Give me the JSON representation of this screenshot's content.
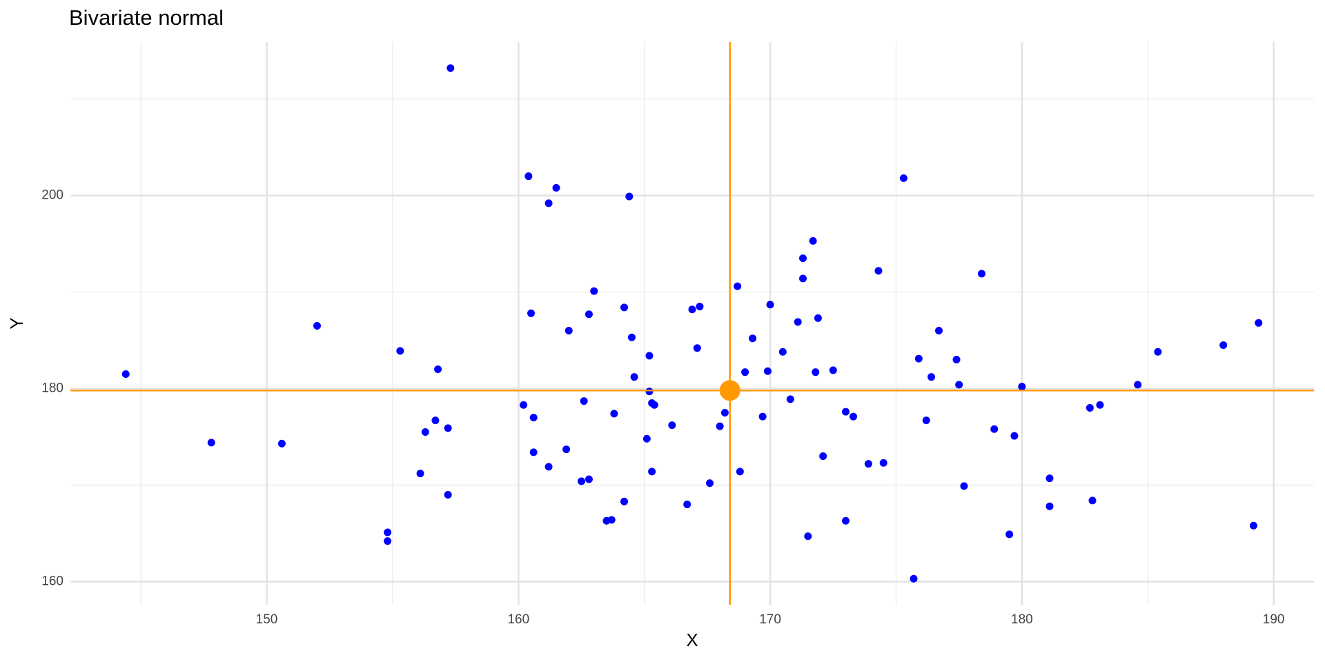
{
  "chart_data": {
    "type": "scatter",
    "title": "Bivariate normal",
    "xlabel": "X",
    "ylabel": "Y",
    "x": [
      144.4,
      147.8,
      150.6,
      152.0,
      154.8,
      154.8,
      155.3,
      156.1,
      156.3,
      156.7,
      156.8,
      157.2,
      157.2,
      157.3,
      160.2,
      160.4,
      160.5,
      160.6,
      160.6,
      161.2,
      161.2,
      161.5,
      161.9,
      162.0,
      162.5,
      162.6,
      162.8,
      162.8,
      163.0,
      163.5,
      163.7,
      163.8,
      164.2,
      164.2,
      164.4,
      164.5,
      164.6,
      165.1,
      165.2,
      165.2,
      165.3,
      165.4,
      165.3,
      166.1,
      166.7,
      166.9,
      167.1,
      167.2,
      167.6,
      168.0,
      168.2,
      168.7,
      168.8,
      169.0,
      169.3,
      169.7,
      169.9,
      170.0,
      170.5,
      170.8,
      171.1,
      171.3,
      171.3,
      171.5,
      171.7,
      171.8,
      171.9,
      172.1,
      172.5,
      173.0,
      173.0,
      173.3,
      173.9,
      174.3,
      174.5,
      175.3,
      175.7,
      175.9,
      176.2,
      176.4,
      176.7,
      177.4,
      177.5,
      177.7,
      178.4,
      178.9,
      179.5,
      179.7,
      180.0,
      181.1,
      181.1,
      182.7,
      182.8,
      183.1,
      184.6,
      185.4,
      188.0,
      189.2,
      189.4
    ],
    "y": [
      181.5,
      174.4,
      174.3,
      186.5,
      165.1,
      164.2,
      183.9,
      171.2,
      175.5,
      176.7,
      182.0,
      175.9,
      169.0,
      213.2,
      178.3,
      202.0,
      187.8,
      177.0,
      173.4,
      171.9,
      199.2,
      200.8,
      173.7,
      186.0,
      170.4,
      178.7,
      170.6,
      187.7,
      190.1,
      166.3,
      166.4,
      177.4,
      168.3,
      188.4,
      199.9,
      185.3,
      181.2,
      174.8,
      183.4,
      179.7,
      178.5,
      178.3,
      171.4,
      176.2,
      168.0,
      188.2,
      184.2,
      188.5,
      170.2,
      176.1,
      177.5,
      190.6,
      171.4,
      181.7,
      185.2,
      177.1,
      181.8,
      188.7,
      183.8,
      178.9,
      186.9,
      191.4,
      193.5,
      164.7,
      195.3,
      181.7,
      187.3,
      173.0,
      181.9,
      177.6,
      166.3,
      177.1,
      172.2,
      192.2,
      172.3,
      201.8,
      160.3,
      183.1,
      176.7,
      181.2,
      186.0,
      183.0,
      180.4,
      169.9,
      191.9,
      175.8,
      164.9,
      175.1,
      180.2,
      170.7,
      167.8,
      178.0,
      168.4,
      178.3,
      180.4,
      183.8,
      184.5,
      165.8,
      186.8
    ],
    "color": "#0000ff",
    "mean": {
      "x": 168.4,
      "y": 179.8,
      "color": "#ff9900"
    },
    "xlim": [
      142.2,
      191.6
    ],
    "ylim": [
      157.6,
      215.9
    ],
    "xticks": [
      150,
      160,
      170,
      180,
      190
    ],
    "yticks": [
      160,
      180,
      200
    ],
    "grid": true
  }
}
